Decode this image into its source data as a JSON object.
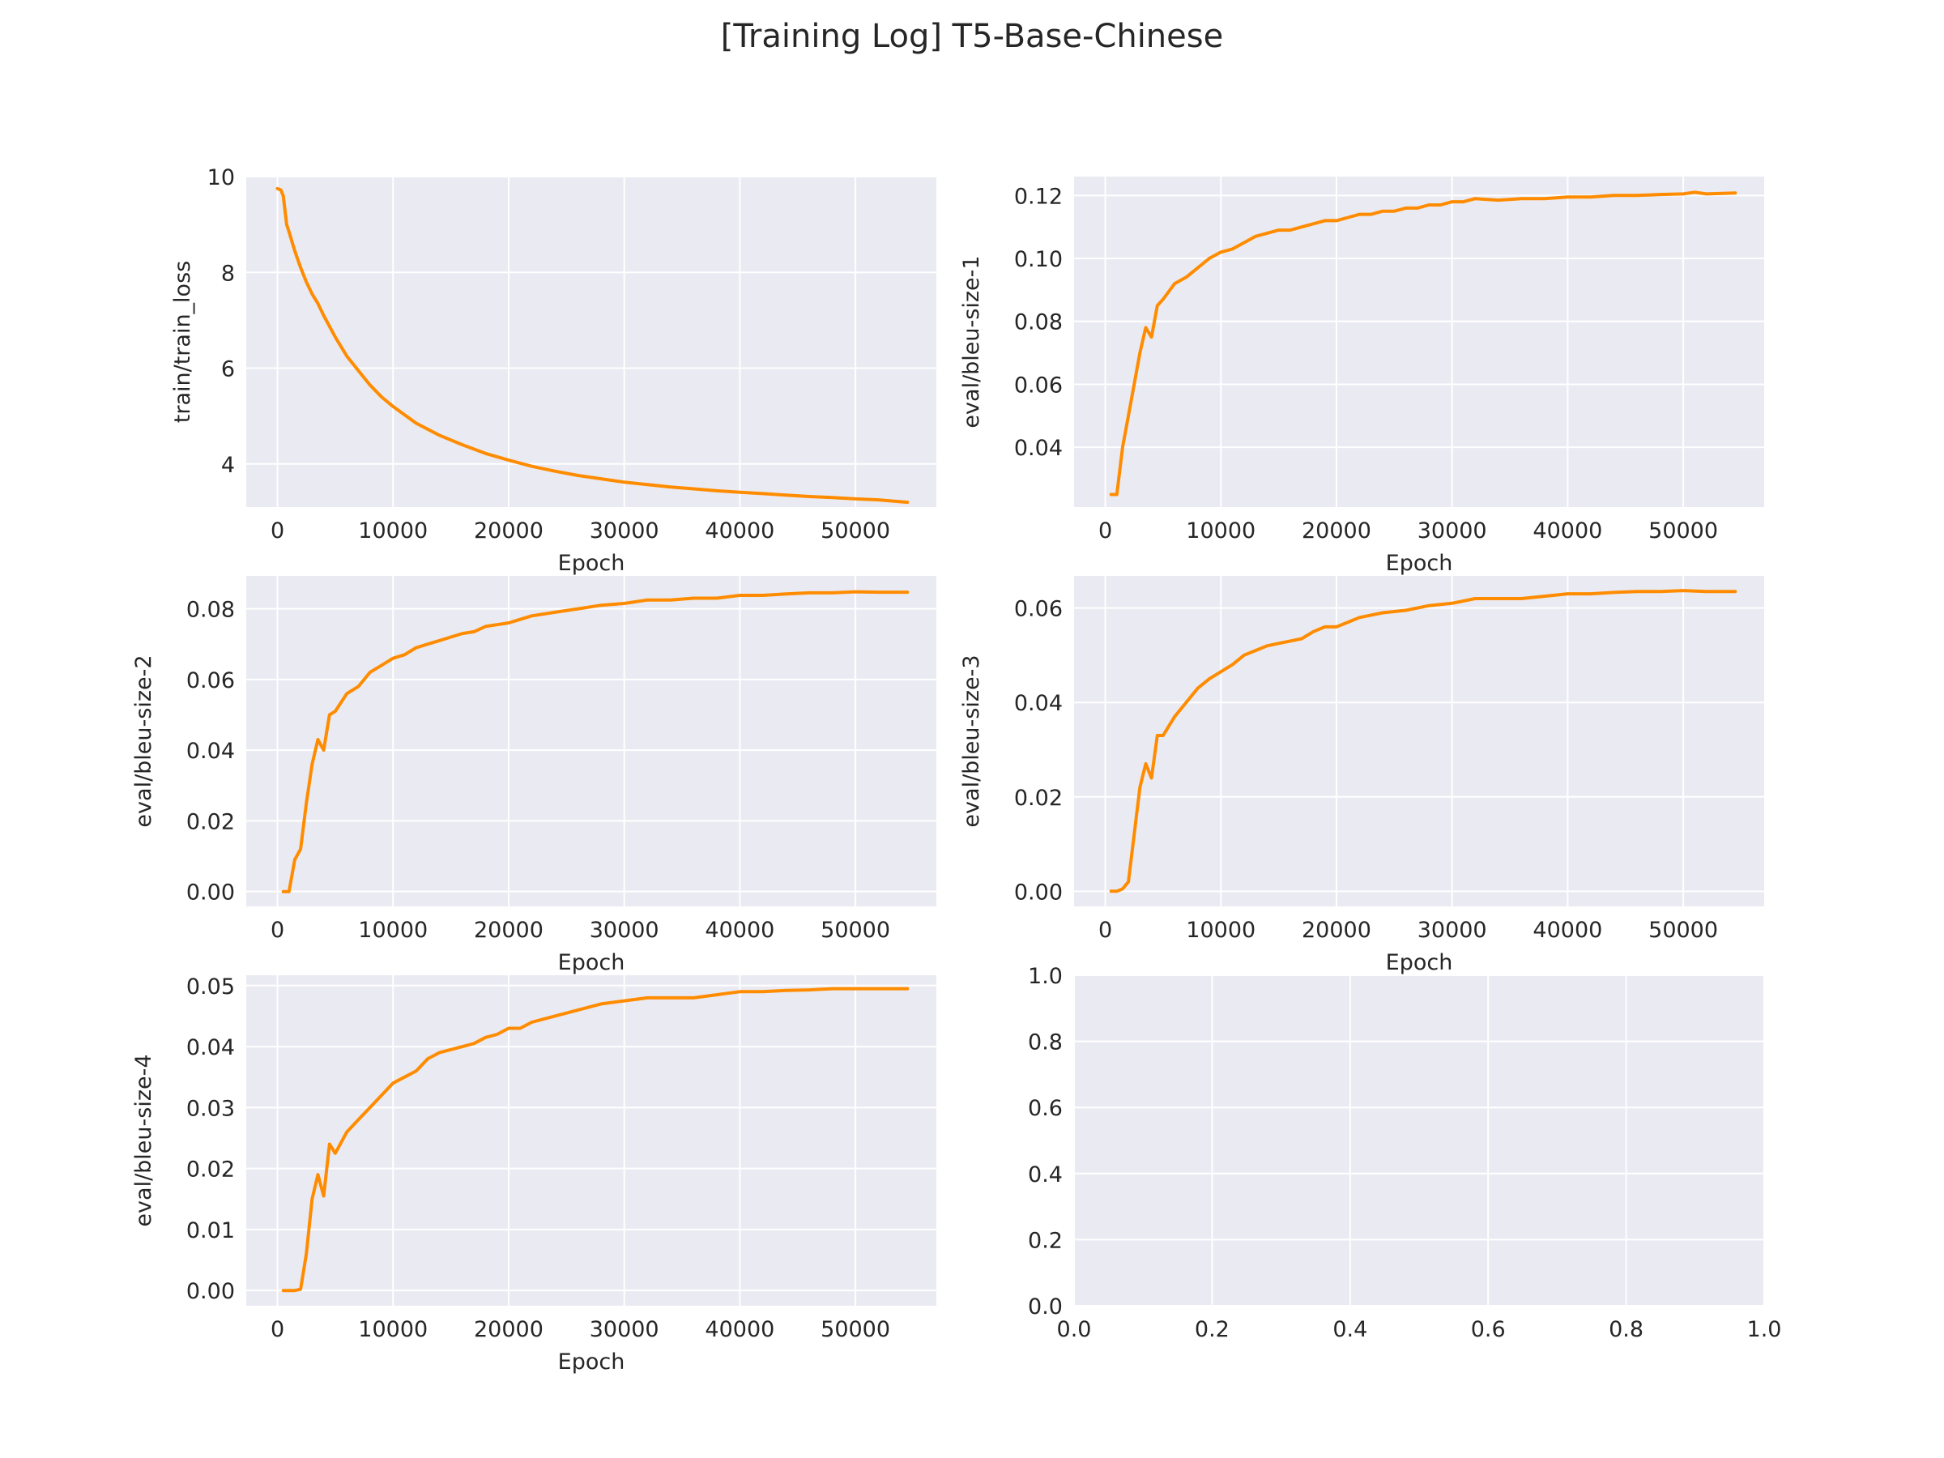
{
  "figure": {
    "title": "[Training Log] T5-Base-Chinese"
  },
  "style": {
    "plot_bg": "#eaeaf2",
    "grid": "#ffffff",
    "line": "#ff8c00",
    "text": "#262626"
  },
  "chart_data": [
    {
      "type": "line",
      "xlabel": "Epoch",
      "ylabel": "train/train_loss",
      "xlim": [
        -2700,
        57000
      ],
      "ylim": [
        3.1,
        10.0
      ],
      "xticks": [
        0,
        10000,
        20000,
        30000,
        40000,
        50000
      ],
      "yticks": [
        4,
        6,
        8,
        10
      ],
      "ytick_decimals": 0,
      "grid": true,
      "series": [
        {
          "x": [
            0,
            300,
            500,
            800,
            1000,
            1500,
            2000,
            2500,
            3000,
            3500,
            4000,
            5000,
            6000,
            7000,
            8000,
            9000,
            10000,
            12000,
            14000,
            16000,
            18000,
            20000,
            22000,
            24000,
            26000,
            28000,
            30000,
            32000,
            34000,
            36000,
            38000,
            40000,
            42000,
            44000,
            46000,
            48000,
            50000,
            52000,
            54500
          ],
          "y": [
            9.75,
            9.72,
            9.6,
            9.0,
            8.85,
            8.45,
            8.1,
            7.8,
            7.55,
            7.35,
            7.1,
            6.65,
            6.25,
            5.95,
            5.65,
            5.4,
            5.2,
            4.85,
            4.6,
            4.4,
            4.22,
            4.08,
            3.95,
            3.85,
            3.76,
            3.69,
            3.62,
            3.57,
            3.52,
            3.48,
            3.44,
            3.41,
            3.38,
            3.35,
            3.32,
            3.3,
            3.27,
            3.25,
            3.2
          ]
        }
      ]
    },
    {
      "type": "line",
      "xlabel": "Epoch",
      "ylabel": "eval/bleu-size-1",
      "xlim": [
        -2700,
        57000
      ],
      "ylim": [
        0.021,
        0.126
      ],
      "xticks": [
        0,
        10000,
        20000,
        30000,
        40000,
        50000
      ],
      "yticks": [
        0.04,
        0.06,
        0.08,
        0.1,
        0.12
      ],
      "ytick_decimals": 2,
      "grid": true,
      "series": [
        {
          "x": [
            500,
            1000,
            1500,
            2000,
            2500,
            3000,
            3500,
            4000,
            4500,
            5000,
            6000,
            7000,
            8000,
            9000,
            10000,
            11000,
            12000,
            13000,
            14000,
            15000,
            16000,
            17000,
            18000,
            19000,
            20000,
            21000,
            22000,
            23000,
            24000,
            25000,
            26000,
            27000,
            28000,
            29000,
            30000,
            31000,
            32000,
            34000,
            36000,
            38000,
            40000,
            42000,
            44000,
            46000,
            48000,
            50000,
            51000,
            52000,
            54500
          ],
          "y": [
            0.025,
            0.025,
            0.04,
            0.05,
            0.06,
            0.07,
            0.078,
            0.075,
            0.085,
            0.087,
            0.092,
            0.094,
            0.097,
            0.1,
            0.102,
            0.103,
            0.105,
            0.107,
            0.108,
            0.109,
            0.109,
            0.11,
            0.111,
            0.112,
            0.112,
            0.113,
            0.114,
            0.114,
            0.115,
            0.115,
            0.116,
            0.116,
            0.117,
            0.117,
            0.118,
            0.118,
            0.119,
            0.1185,
            0.119,
            0.119,
            0.1195,
            0.1195,
            0.12,
            0.12,
            0.1203,
            0.1205,
            0.121,
            0.1205,
            0.1208
          ]
        }
      ]
    },
    {
      "type": "line",
      "xlabel": "Epoch",
      "ylabel": "eval/bleu-size-2",
      "xlim": [
        -2700,
        57000
      ],
      "ylim": [
        -0.0042,
        0.0893
      ],
      "xticks": [
        0,
        10000,
        20000,
        30000,
        40000,
        50000
      ],
      "yticks": [
        0,
        0.02,
        0.04,
        0.06,
        0.08
      ],
      "ytick_decimals": 2,
      "grid": true,
      "series": [
        {
          "x": [
            500,
            1000,
            1500,
            2000,
            2500,
            3000,
            3500,
            4000,
            4500,
            5000,
            6000,
            7000,
            8000,
            9000,
            10000,
            11000,
            12000,
            13000,
            14000,
            15000,
            16000,
            17000,
            18000,
            19000,
            20000,
            21000,
            22000,
            24000,
            26000,
            28000,
            30000,
            32000,
            34000,
            36000,
            38000,
            40000,
            42000,
            44000,
            46000,
            48000,
            50000,
            52000,
            54500
          ],
          "y": [
            0.0,
            0.0,
            0.009,
            0.012,
            0.025,
            0.036,
            0.043,
            0.04,
            0.05,
            0.051,
            0.056,
            0.058,
            0.062,
            0.064,
            0.066,
            0.067,
            0.069,
            0.07,
            0.071,
            0.072,
            0.073,
            0.0735,
            0.075,
            0.0755,
            0.076,
            0.077,
            0.078,
            0.079,
            0.08,
            0.081,
            0.0815,
            0.0825,
            0.0825,
            0.083,
            0.083,
            0.0838,
            0.0838,
            0.0842,
            0.0845,
            0.0845,
            0.0848,
            0.0847,
            0.0847
          ]
        }
      ]
    },
    {
      "type": "line",
      "xlabel": "Epoch",
      "ylabel": "eval/bleu-size-3",
      "xlim": [
        -2700,
        57000
      ],
      "ylim": [
        -0.0032,
        0.0668
      ],
      "xticks": [
        0,
        10000,
        20000,
        30000,
        40000,
        50000
      ],
      "yticks": [
        0,
        0.02,
        0.04,
        0.06
      ],
      "ytick_decimals": 2,
      "grid": true,
      "series": [
        {
          "x": [
            500,
            1000,
            1500,
            2000,
            2500,
            3000,
            3500,
            4000,
            4500,
            5000,
            6000,
            7000,
            8000,
            9000,
            10000,
            11000,
            12000,
            13000,
            14000,
            15000,
            16000,
            17000,
            18000,
            19000,
            20000,
            21000,
            22000,
            24000,
            26000,
            28000,
            30000,
            32000,
            34000,
            36000,
            38000,
            40000,
            42000,
            44000,
            46000,
            48000,
            50000,
            52000,
            54500
          ],
          "y": [
            0.0,
            0.0,
            0.0005,
            0.002,
            0.012,
            0.022,
            0.027,
            0.024,
            0.033,
            0.033,
            0.037,
            0.04,
            0.043,
            0.045,
            0.0465,
            0.048,
            0.05,
            0.051,
            0.052,
            0.0525,
            0.053,
            0.0535,
            0.055,
            0.056,
            0.056,
            0.057,
            0.058,
            0.059,
            0.0595,
            0.0605,
            0.061,
            0.062,
            0.062,
            0.062,
            0.0625,
            0.063,
            0.063,
            0.0633,
            0.0635,
            0.0635,
            0.0637,
            0.0635,
            0.0635
          ]
        }
      ]
    },
    {
      "type": "line",
      "xlabel": "Epoch",
      "ylabel": "eval/bleu-size-4",
      "xlim": [
        -2700,
        57000
      ],
      "ylim": [
        -0.0025,
        0.0517
      ],
      "xticks": [
        0,
        10000,
        20000,
        30000,
        40000,
        50000
      ],
      "yticks": [
        0,
        0.01,
        0.02,
        0.03,
        0.04,
        0.05
      ],
      "ytick_decimals": 2,
      "grid": true,
      "series": [
        {
          "x": [
            500,
            1000,
            1500,
            2000,
            2500,
            3000,
            3500,
            4000,
            4500,
            5000,
            6000,
            7000,
            8000,
            9000,
            10000,
            11000,
            12000,
            13000,
            14000,
            15000,
            16000,
            17000,
            18000,
            19000,
            20000,
            21000,
            22000,
            23000,
            24000,
            26000,
            28000,
            30000,
            32000,
            34000,
            36000,
            38000,
            40000,
            42000,
            44000,
            46000,
            48000,
            50000,
            52000,
            54500
          ],
          "y": [
            0.0,
            0.0,
            0.0,
            0.0002,
            0.006,
            0.015,
            0.019,
            0.0155,
            0.024,
            0.0225,
            0.026,
            0.028,
            0.03,
            0.032,
            0.034,
            0.035,
            0.036,
            0.038,
            0.039,
            0.0395,
            0.04,
            0.0405,
            0.0415,
            0.042,
            0.043,
            0.043,
            0.044,
            0.0445,
            0.045,
            0.046,
            0.047,
            0.0475,
            0.048,
            0.048,
            0.048,
            0.0485,
            0.049,
            0.049,
            0.0492,
            0.0493,
            0.0495,
            0.0495,
            0.0495,
            0.0495
          ]
        }
      ]
    },
    {
      "type": "line",
      "xlabel": "",
      "ylabel": "",
      "xlim": [
        0.0,
        1.0
      ],
      "ylim": [
        0.0,
        1.0
      ],
      "xticks": [
        0.0,
        0.2,
        0.4,
        0.6,
        0.8,
        1.0
      ],
      "yticks": [
        0.0,
        0.2,
        0.4,
        0.6,
        0.8,
        1.0
      ],
      "xtick_decimals": 1,
      "ytick_decimals": 1,
      "grid": true,
      "series": []
    }
  ]
}
